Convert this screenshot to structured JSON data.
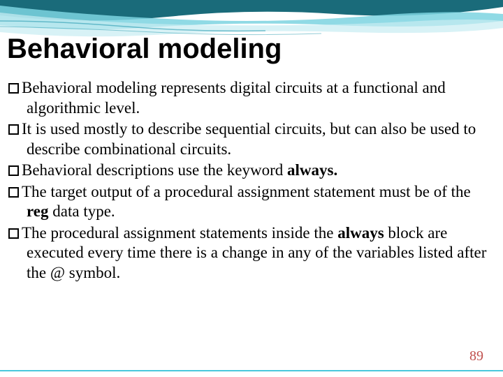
{
  "slide": {
    "title": "Behavioral modeling",
    "title_fontsize": 40,
    "title_color": "#000000",
    "body_fontsize": 23,
    "body_color": "#000000",
    "background_color": "#ffffff",
    "bullets": [
      {
        "segments": [
          {
            "text": "Behavioral modeling represents digital circuits at a functional and algorithmic level.",
            "bold": false
          }
        ]
      },
      {
        "segments": [
          {
            "text": "It is used mostly to describe sequential circuits, but can also be used to describe combinational circuits.",
            "bold": false
          }
        ]
      },
      {
        "segments": [
          {
            "text": "Behavioral descriptions use the keyword ",
            "bold": false
          },
          {
            "text": "always.",
            "bold": true
          }
        ]
      },
      {
        "segments": [
          {
            "text": "The target output of a procedural assignment statement must be of the ",
            "bold": false
          },
          {
            "text": "reg",
            "bold": true
          },
          {
            "text": " data type.",
            "bold": false
          }
        ]
      },
      {
        "segments": [
          {
            "text": "The procedural assignment statements inside the ",
            "bold": false
          },
          {
            "text": "always",
            "bold": true
          },
          {
            "text": " block are executed every time there is a change in any of the variables listed after the @ symbol.",
            "bold": false
          }
        ]
      }
    ],
    "page_number": "89",
    "page_number_color": "#c0504d",
    "wave_colors": {
      "dark_teal": "#1a6b7a",
      "mid_teal": "#2a9bb0",
      "light_cyan": "#7dd4e0",
      "pale_cyan": "#c8ecf2"
    },
    "footer_line_color": "#49c8dc"
  }
}
